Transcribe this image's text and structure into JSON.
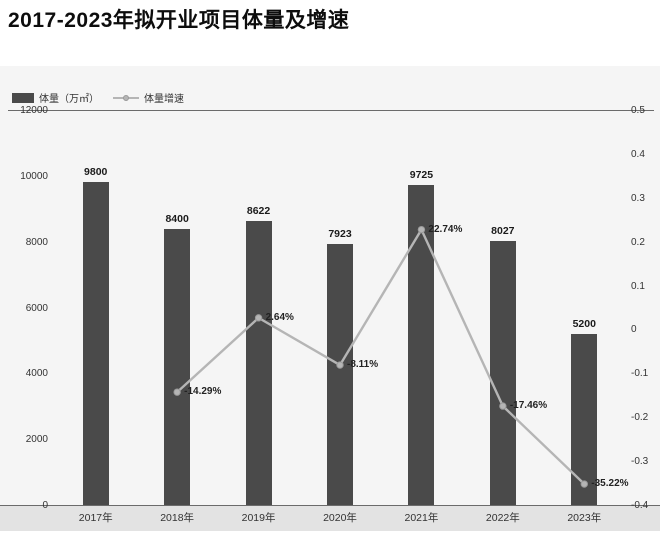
{
  "chart_data": {
    "type": "bar",
    "title": "2017-2023年拟开业项目体量及增速",
    "categories": [
      "2017年",
      "2018年",
      "2019年",
      "2020年",
      "2021年",
      "2022年",
      "2023年"
    ],
    "series": [
      {
        "name": "体量（万㎡）",
        "type": "bar",
        "color": "#4a4a4a",
        "values": [
          9800,
          8400,
          8622,
          7923,
          9725,
          8027,
          5200
        ]
      },
      {
        "name": "体量增速",
        "type": "line",
        "color": "#b5b5b5",
        "values": [
          null,
          -0.1429,
          0.0264,
          -0.0811,
          0.2274,
          -0.1746,
          -0.3522
        ],
        "labels": [
          null,
          "-14.29%",
          "2.64%",
          "-8.11%",
          "22.74%",
          "-17.46%",
          "-35.22%"
        ]
      }
    ],
    "left_axis": {
      "min": 0,
      "max": 12000,
      "ticks": [
        "12000",
        "10000",
        "8000",
        "6000",
        "4000",
        "2000",
        "0"
      ]
    },
    "right_axis": {
      "min": -0.4,
      "max": 0.5,
      "ticks": [
        "0.5",
        "0.4",
        "0.3",
        "0.2",
        "0.1",
        "0",
        "-0.1",
        "-0.2",
        "-0.3",
        "-0.4"
      ]
    },
    "legend_position": "top-left",
    "grid": "off"
  }
}
